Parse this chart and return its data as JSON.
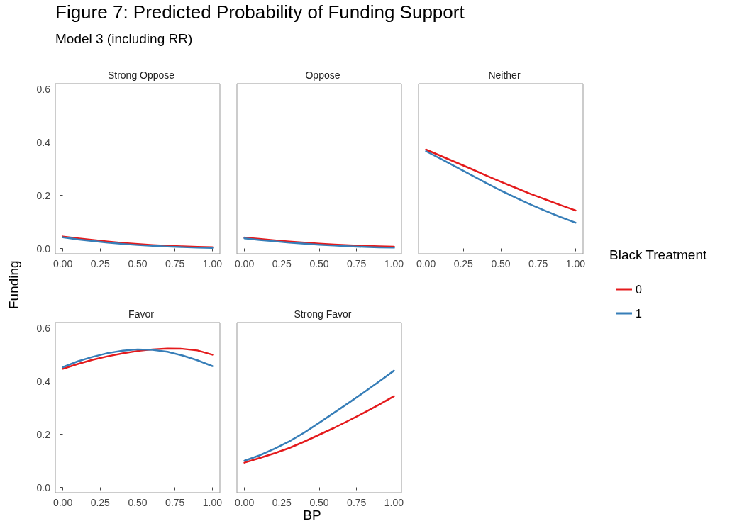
{
  "chart_data": [
    {
      "type": "other",
      "title": "Figure 7: Predicted Probability of Funding Support",
      "subtitle": "Model 3 (including RR)",
      "xlabel": "BP",
      "ylabel": "Funding"
    },
    {
      "type": "line",
      "title": "Strong Oppose",
      "x": [
        0,
        0.1,
        0.2,
        0.3,
        0.4,
        0.5,
        0.6,
        0.7,
        0.8,
        0.9,
        1
      ],
      "xlim": [
        -0.05,
        1.05
      ],
      "xticks": [
        {
          "value": 0,
          "label": "0.00"
        },
        {
          "value": 0.25,
          "label": "0.25"
        },
        {
          "value": 0.5,
          "label": "0.50"
        },
        {
          "value": 0.75,
          "label": "0.75"
        },
        {
          "value": 1,
          "label": "1.00"
        }
      ],
      "ylim": [
        -0.02,
        0.62
      ],
      "yticks": [
        {
          "value": 0,
          "label": "0.0"
        },
        {
          "value": 0.2,
          "label": "0.2"
        },
        {
          "value": 0.4,
          "label": "0.4"
        },
        {
          "value": 0.6,
          "label": "0.6"
        }
      ],
      "series": [
        {
          "color": "#e41a1c",
          "values": [
            0.045,
            0.038,
            0.032,
            0.026,
            0.021,
            0.017,
            0.013,
            0.01,
            0.008,
            0.006,
            0.005
          ]
        },
        {
          "color": "#377eb8",
          "values": [
            0.042,
            0.034,
            0.028,
            0.022,
            0.017,
            0.013,
            0.01,
            0.007,
            0.005,
            0.003,
            0.002
          ]
        }
      ]
    },
    {
      "type": "line",
      "title": "Oppose",
      "tick_labels": "x",
      "x": [
        0,
        0.1,
        0.2,
        0.3,
        0.4,
        0.5,
        0.6,
        0.7,
        0.8,
        0.9,
        1
      ],
      "xlim": [
        -0.05,
        1.05
      ],
      "xticks": [
        {
          "value": 0,
          "label": "0.00"
        },
        {
          "value": 0.25,
          "label": "0.25"
        },
        {
          "value": 0.5,
          "label": "0.50"
        },
        {
          "value": 0.75,
          "label": "0.75"
        },
        {
          "value": 1,
          "label": "1.00"
        }
      ],
      "ylim": [
        -0.02,
        0.62
      ],
      "series": [
        {
          "color": "#e41a1c",
          "values": [
            0.041,
            0.036,
            0.031,
            0.026,
            0.022,
            0.018,
            0.015,
            0.012,
            0.01,
            0.008,
            0.007
          ]
        },
        {
          "color": "#377eb8",
          "values": [
            0.038,
            0.032,
            0.027,
            0.022,
            0.018,
            0.014,
            0.011,
            0.008,
            0.006,
            0.004,
            0.003
          ]
        }
      ]
    },
    {
      "type": "line",
      "title": "Neither",
      "tick_labels": "x",
      "legend": "right",
      "legend_title": "Black Treatment",
      "x": [
        0,
        0.1,
        0.2,
        0.3,
        0.4,
        0.5,
        0.6,
        0.7,
        0.8,
        0.9,
        1
      ],
      "xlim": [
        -0.05,
        1.05
      ],
      "xticks": [
        {
          "value": 0,
          "label": "0.00"
        },
        {
          "value": 0.25,
          "label": "0.25"
        },
        {
          "value": 0.5,
          "label": "0.50"
        },
        {
          "value": 0.75,
          "label": "0.75"
        },
        {
          "value": 1,
          "label": "1.00"
        }
      ],
      "ylim": [
        -0.02,
        0.62
      ],
      "series": [
        {
          "name": "0",
          "color": "#e41a1c",
          "values": [
            0.372,
            0.348,
            0.324,
            0.3,
            0.275,
            0.251,
            0.228,
            0.205,
            0.184,
            0.163,
            0.143
          ]
        },
        {
          "name": "1",
          "color": "#377eb8",
          "values": [
            0.366,
            0.337,
            0.307,
            0.277,
            0.247,
            0.218,
            0.191,
            0.165,
            0.141,
            0.118,
            0.097
          ]
        }
      ]
    },
    {
      "type": "line",
      "title": "Favor",
      "x": [
        0,
        0.1,
        0.2,
        0.3,
        0.4,
        0.5,
        0.6,
        0.7,
        0.8,
        0.9,
        1
      ],
      "xlim": [
        -0.05,
        1.05
      ],
      "xticks": [
        {
          "value": 0,
          "label": "0.00"
        },
        {
          "value": 0.25,
          "label": "0.25"
        },
        {
          "value": 0.5,
          "label": "0.50"
        },
        {
          "value": 0.75,
          "label": "0.75"
        },
        {
          "value": 1,
          "label": "1.00"
        }
      ],
      "ylim": [
        -0.02,
        0.62
      ],
      "yticks": [
        {
          "value": 0,
          "label": "0.0"
        },
        {
          "value": 0.2,
          "label": "0.2"
        },
        {
          "value": 0.4,
          "label": "0.4"
        },
        {
          "value": 0.6,
          "label": "0.6"
        }
      ],
      "series": [
        {
          "color": "#e41a1c",
          "values": [
            0.446,
            0.464,
            0.48,
            0.493,
            0.504,
            0.513,
            0.519,
            0.522,
            0.521,
            0.515,
            0.499
          ]
        },
        {
          "color": "#377eb8",
          "values": [
            0.452,
            0.474,
            0.491,
            0.505,
            0.514,
            0.519,
            0.517,
            0.51,
            0.496,
            0.478,
            0.456
          ]
        }
      ]
    },
    {
      "type": "line",
      "title": "Strong Favor",
      "tick_labels": "x",
      "x": [
        0,
        0.1,
        0.2,
        0.3,
        0.4,
        0.5,
        0.6,
        0.7,
        0.8,
        0.9,
        1
      ],
      "xlim": [
        -0.05,
        1.05
      ],
      "xticks": [
        {
          "value": 0,
          "label": "0.00"
        },
        {
          "value": 0.25,
          "label": "0.25"
        },
        {
          "value": 0.5,
          "label": "0.50"
        },
        {
          "value": 0.75,
          "label": "0.75"
        },
        {
          "value": 1,
          "label": "1.00"
        }
      ],
      "ylim": [
        -0.02,
        0.62
      ],
      "series": [
        {
          "color": "#e41a1c",
          "values": [
            0.093,
            0.11,
            0.128,
            0.148,
            0.172,
            0.198,
            0.224,
            0.252,
            0.281,
            0.311,
            0.343
          ]
        },
        {
          "color": "#377eb8",
          "values": [
            0.1,
            0.12,
            0.145,
            0.173,
            0.206,
            0.243,
            0.281,
            0.319,
            0.358,
            0.398,
            0.439
          ]
        }
      ]
    }
  ]
}
